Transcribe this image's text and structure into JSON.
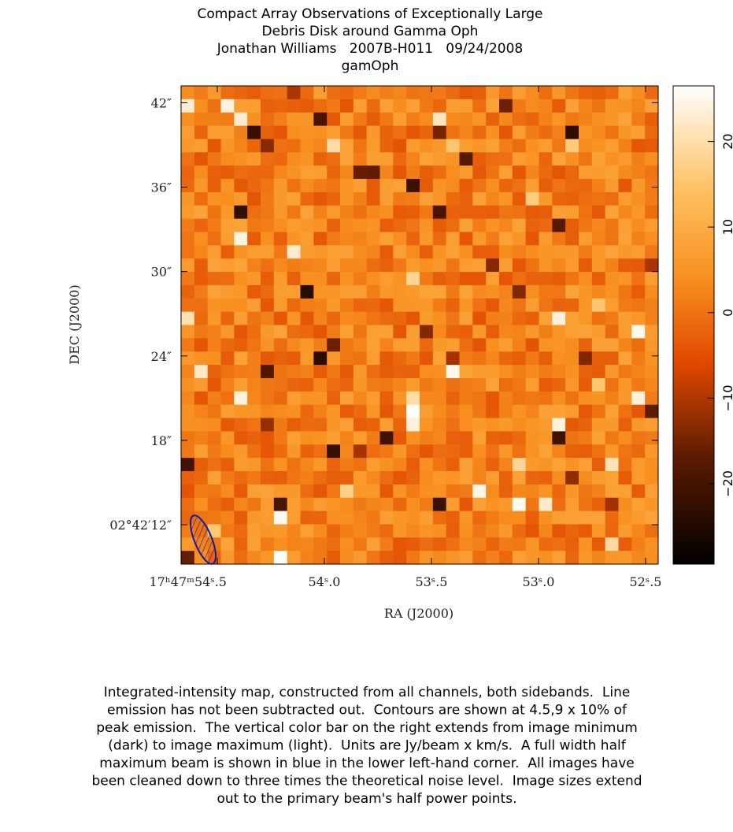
{
  "chart_data": {
    "type": "image",
    "title": [
      "Compact Array Observations of Exceptionally Large",
      "Debris Disk around Gamma Oph",
      "Jonathan Williams   2007B-H011   09/24/2008",
      "gamOph"
    ],
    "x_label": "RA (J2000)",
    "y_label": "DEC (J2000)",
    "xlim": [
      54.669,
      52.441
    ],
    "xticks": [
      {
        "value": 54.5,
        "label": "17ʰ47ᵐ54ˢ.5"
      },
      {
        "value": 54.0,
        "label": "54ˢ.0"
      },
      {
        "value": 53.5,
        "label": "53ˢ.5"
      },
      {
        "value": 53.0,
        "label": "53ˢ.0"
      },
      {
        "value": 52.5,
        "label": "52ˢ.5"
      }
    ],
    "ylim": [
      9.2,
      43.2
    ],
    "yticks": [
      {
        "value": 12,
        "label": "02°42′12″"
      },
      {
        "value": 18,
        "label": "18″"
      },
      {
        "value": 24,
        "label": "24″"
      },
      {
        "value": 30,
        "label": "30″"
      },
      {
        "value": 36,
        "label": "36″"
      },
      {
        "value": 42,
        "label": "42″"
      }
    ],
    "colorbar": {
      "lim": [
        -29.4,
        26.5
      ],
      "ticks": [
        {
          "value": -20,
          "label": "−20"
        },
        {
          "value": -10,
          "label": "−10"
        },
        0,
        10,
        20
      ]
    }
  },
  "caption": [
    "Integrated-intensity map, constructed from all channels, both sidebands.  Line",
    "emission has not been subtracted out.  Contours are shown at 4.5,9 x 10% of",
    "peak emission.  The vertical color bar on the right extends from image minimum",
    "(dark) to image maximum (light).  Units are Jy/beam x km/s.  A full width half",
    "maximum beam is shown in blue in the lower left-hand corner.  All images have",
    "been cleaned down to three times the theoretical noise level.  Image sizes extend",
    "out to the primary beam's half power points."
  ]
}
